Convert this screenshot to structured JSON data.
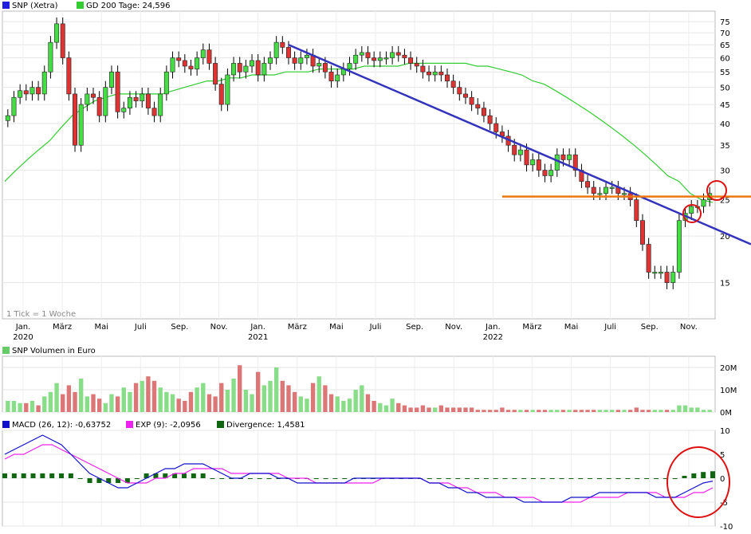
{
  "legend_main": {
    "price_label": "SNP (Xetra)",
    "ma_label": "GD 200 Tage: 24,596",
    "price_color": "#1f1fdd",
    "ma_color": "#33cc33"
  },
  "tick_note": "1 Tick = 1 Woche",
  "volume_legend": {
    "label": "SNP Volumen in Euro",
    "color": "#66cc66"
  },
  "macd_legend": {
    "macd": "MACD (26, 12): -0,63752",
    "exp": "EXP (9): -2,0956",
    "div": "Divergence: 1,4581",
    "macd_color": "#1010cc",
    "exp_color": "#ee22ee",
    "div_color": "#116611"
  },
  "x_axis": {
    "months": [
      "Jan.",
      "März",
      "Mai",
      "Juli",
      "Sep.",
      "Nov.",
      "Jan.",
      "März",
      "Mai",
      "Juli",
      "Sep.",
      "Nov.",
      "Jan.",
      "März",
      "Mai",
      "Juli",
      "Sep.",
      "Nov."
    ],
    "years": [
      "2020",
      "2021",
      "2022"
    ]
  },
  "price_axis": {
    "ticks": [
      "75",
      "70",
      "65",
      "60",
      "55",
      "50",
      "45",
      "40",
      "35",
      "30",
      "25",
      "20",
      "15"
    ],
    "scale": "log"
  },
  "volume_axis": {
    "ticks": [
      "20M",
      "10M",
      "0M"
    ]
  },
  "macd_axis": {
    "ticks": [
      "10",
      "5",
      "0",
      "-5",
      "-10"
    ]
  },
  "chart_data": [
    {
      "type": "candlestick",
      "series": [
        {
          "name": "SNP (Xetra)",
          "values": [
            42,
            47,
            49,
            48,
            50,
            48,
            55,
            66,
            74,
            60,
            48,
            35,
            45,
            48,
            47,
            42,
            50,
            55,
            43,
            44,
            47,
            46,
            48,
            44,
            42,
            48,
            55,
            60,
            59,
            57,
            56,
            60,
            63,
            58,
            51,
            45,
            54,
            58,
            55,
            57,
            59,
            54,
            58,
            60,
            66,
            64,
            60,
            58,
            60,
            61,
            57,
            58,
            55,
            52,
            54,
            56,
            58,
            61,
            62,
            60,
            59,
            60,
            60,
            62,
            61,
            60,
            58,
            57,
            55,
            54,
            55,
            54,
            52,
            50,
            48,
            47,
            45,
            44,
            42,
            40,
            38,
            37,
            35,
            33,
            34,
            31,
            32,
            30,
            29,
            30,
            33,
            32,
            33,
            30,
            28,
            27,
            26,
            26,
            27,
            27,
            26,
            26,
            25,
            22,
            19,
            16,
            16,
            16,
            15,
            16,
            22,
            23,
            24,
            24,
            25,
            26
          ]
        }
      ],
      "moving_average": {
        "name": "GD 200 Tage: 24,596",
        "values": [
          28,
          30,
          32,
          34,
          36,
          39,
          42,
          44,
          46,
          47,
          48,
          48,
          48,
          48,
          48,
          49,
          50,
          51,
          52,
          52,
          53,
          53,
          54,
          54,
          54,
          55,
          55,
          55,
          56,
          56,
          56,
          56,
          57,
          57,
          57,
          57,
          58,
          58,
          58,
          58,
          58,
          58,
          57,
          57,
          56,
          55,
          54,
          52,
          51,
          49,
          47,
          45,
          43,
          41,
          39,
          37,
          35,
          33,
          31,
          29,
          28,
          26,
          25,
          24.6
        ]
      },
      "resistance_level": 25.5,
      "trendline": {
        "start": 65,
        "end": 19
      },
      "ylim": [
        12,
        80
      ]
    },
    {
      "type": "bar",
      "title": "SNP Volumen in Euro",
      "values": [
        5,
        5,
        4,
        4,
        5,
        3,
        7,
        9,
        13,
        8,
        12,
        9,
        15,
        7,
        8,
        6,
        4,
        8,
        7,
        11,
        9,
        13,
        14,
        16,
        14,
        11,
        9,
        8,
        6,
        5,
        9,
        11,
        13,
        8,
        7,
        13,
        10,
        15,
        21,
        10,
        8,
        18,
        12,
        14,
        20,
        14,
        12,
        9,
        7,
        6,
        13,
        16,
        12,
        8,
        7,
        5,
        6,
        10,
        12,
        8,
        5,
        4,
        3,
        6,
        4,
        3,
        2,
        2,
        3,
        2,
        2,
        3,
        2,
        2,
        2,
        2,
        2,
        1,
        1,
        1,
        1,
        2,
        1,
        1,
        1,
        1,
        1,
        1,
        1,
        1,
        1,
        1,
        1,
        1,
        1,
        1,
        1,
        1,
        1,
        1,
        1,
        1,
        1,
        2,
        1,
        1,
        1,
        1,
        1,
        1,
        3,
        3,
        2,
        2,
        1,
        1
      ],
      "ylim": [
        0,
        25
      ]
    },
    {
      "type": "line",
      "series": [
        {
          "name": "MACD (26, 12): -0,63752",
          "values": [
            5,
            6,
            7,
            8,
            9,
            8,
            7,
            5,
            3,
            1,
            0,
            -1,
            -2,
            -2,
            -1,
            0,
            1,
            2,
            2,
            3,
            3,
            3,
            2,
            1,
            0,
            0,
            1,
            1,
            1,
            0,
            0,
            -1,
            -1,
            -1,
            -1,
            -1,
            -1,
            0,
            0,
            0,
            0,
            0,
            0,
            0,
            0,
            -1,
            -1,
            -2,
            -2,
            -3,
            -3,
            -4,
            -4,
            -4,
            -4,
            -5,
            -5,
            -5,
            -5,
            -5,
            -4,
            -4,
            -4,
            -3,
            -3,
            -3,
            -3,
            -3,
            -3,
            -4,
            -4,
            -4,
            -3,
            -2,
            -1,
            -0.6
          ]
        },
        {
          "name": "EXP (9): -2,0956",
          "values": [
            4,
            5,
            5,
            6,
            7,
            7,
            6,
            5,
            4,
            3,
            2,
            1,
            0,
            -1,
            -1,
            -1,
            0,
            0,
            1,
            1,
            2,
            2,
            2,
            2,
            1,
            1,
            1,
            1,
            1,
            1,
            0,
            0,
            0,
            -1,
            -1,
            -1,
            -1,
            -1,
            -1,
            -1,
            0,
            0,
            0,
            0,
            0,
            -1,
            -1,
            -1,
            -2,
            -2,
            -3,
            -3,
            -3,
            -4,
            -4,
            -4,
            -4,
            -5,
            -5,
            -5,
            -5,
            -5,
            -4,
            -4,
            -4,
            -4,
            -3,
            -3,
            -3,
            -3,
            -4,
            -4,
            -4,
            -3,
            -3,
            -2
          ]
        },
        {
          "name": "Divergence: 1,4581",
          "values": [
            1,
            1,
            1,
            1,
            1,
            1,
            1,
            1,
            0,
            -1,
            -1,
            -1,
            -1,
            -1,
            0,
            1,
            1,
            1,
            1,
            1,
            1,
            1,
            0,
            0,
            0,
            0,
            0,
            0,
            0,
            0,
            0,
            0,
            0,
            0,
            0,
            0,
            0,
            0,
            0,
            0,
            0,
            0,
            0,
            0,
            0,
            0,
            0,
            0,
            0,
            0,
            0,
            0,
            0,
            0,
            0,
            0,
            0,
            0,
            0,
            0,
            0,
            0,
            0,
            0,
            0,
            0,
            0,
            0,
            0,
            0,
            0,
            0,
            0.5,
            1,
            1.3,
            1.46
          ]
        }
      ],
      "ylim": [
        -10,
        10
      ]
    }
  ]
}
